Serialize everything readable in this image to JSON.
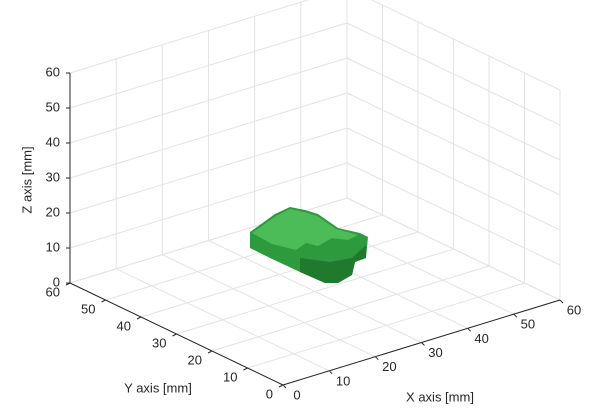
{
  "chart_data": {
    "type": "surface3d",
    "xlabel": "X axis [mm]",
    "ylabel": "Y axis [mm]",
    "zlabel": "Z axis [mm]",
    "xlim": [
      0,
      60
    ],
    "ylim": [
      0,
      60
    ],
    "zlim": [
      0,
      60
    ],
    "xticks": [
      0,
      10,
      20,
      30,
      40,
      50,
      60
    ],
    "yticks": [
      0,
      10,
      20,
      30,
      40,
      50,
      60
    ],
    "zticks": [
      0,
      10,
      20,
      30,
      40,
      50,
      60
    ],
    "grid": true,
    "color": "#2e9a3e"
  }
}
